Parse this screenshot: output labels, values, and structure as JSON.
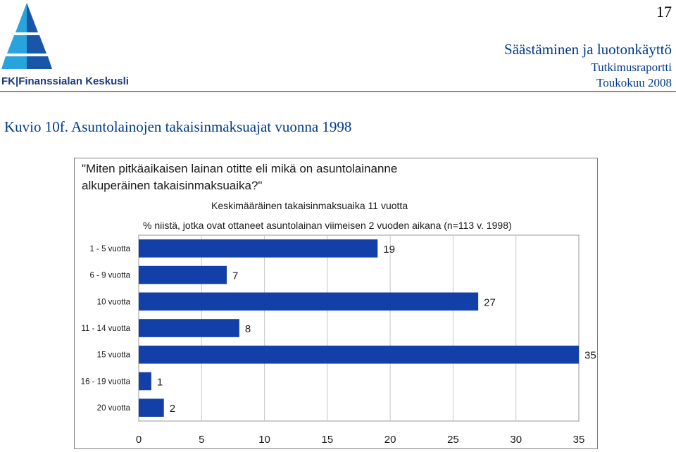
{
  "header": {
    "page_number": "17",
    "title": "Säästäminen ja luotonkäyttö",
    "subtitle1": "Tutkimusraportti",
    "subtitle2": "Toukokuu 2008",
    "logo_text": "FK|Finanssialan Keskusliitto"
  },
  "figure_caption": "Kuvio 10f. Asuntolainojen takaisinmaksuajat vuonna 1998",
  "colors": {
    "bar": "#1240a8",
    "header_text": "#003a8c",
    "logo_light": "#29a3dc",
    "logo_dark": "#1a56a8"
  },
  "chart_data": {
    "type": "bar",
    "orientation": "horizontal",
    "question_line1": "\"Miten pitkäaikaisen lainan otitte eli mikä on asuntolainanne",
    "question_line2": "alkuperäinen takaisinmaksuaika?\"",
    "subtitle": "Keskimääräinen takaisinmaksuaika 11 vuotta",
    "note": "% niistä, jotka ovat ottaneet asuntolainan viimeisen 2 vuoden aikana  (n=113 v. 1998)",
    "categories": [
      "1 - 5 vuotta",
      "6 - 9 vuotta",
      "10 vuotta",
      "11 - 14 vuotta",
      "15 vuotta",
      "16 - 19 vuotta",
      "20 vuotta"
    ],
    "values": [
      19,
      7,
      27,
      8,
      35,
      1,
      2
    ],
    "xlim": [
      0,
      35
    ],
    "xticks": [
      "0",
      "5",
      "10",
      "15",
      "20",
      "25",
      "30",
      "35"
    ],
    "grid": true,
    "legend": "none"
  }
}
